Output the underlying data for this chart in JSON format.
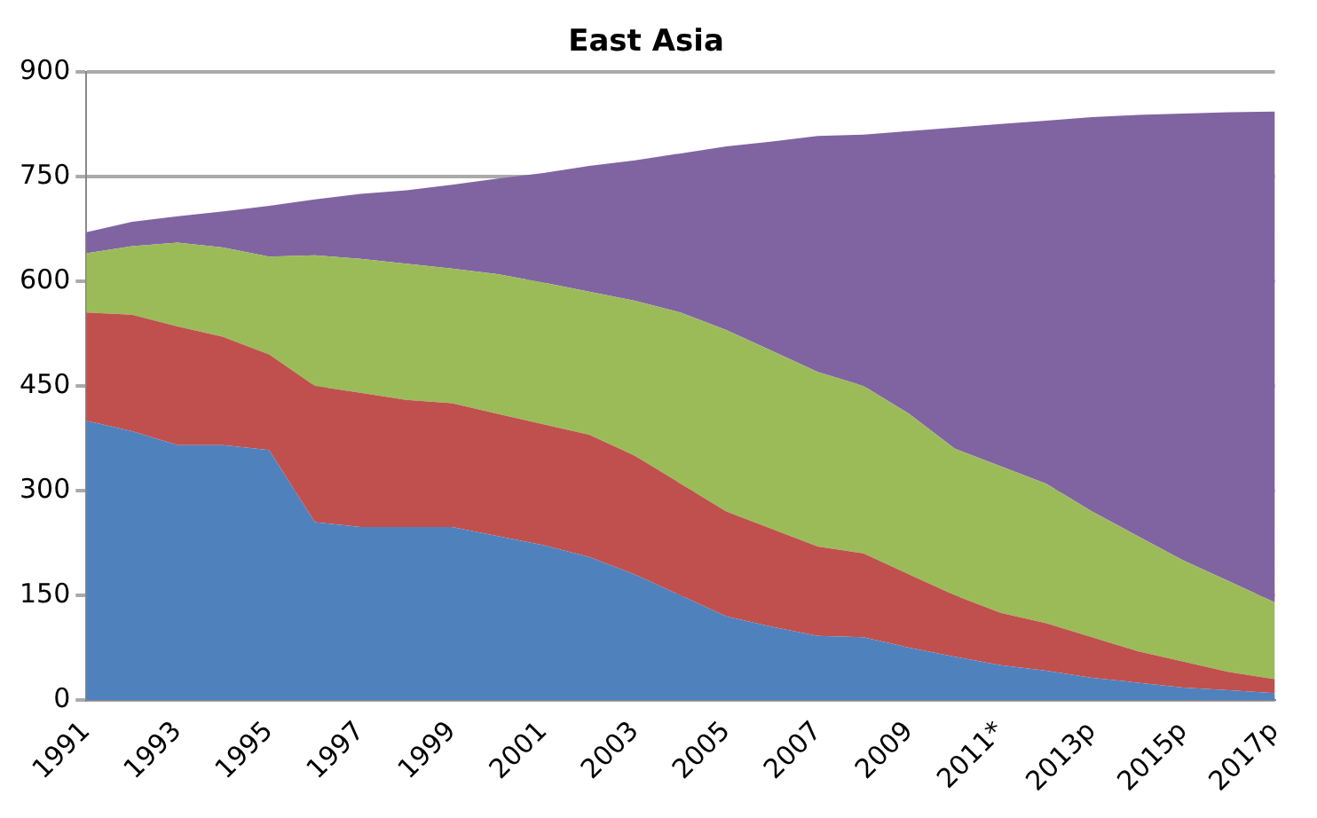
{
  "chart_data": {
    "type": "area",
    "title": "East Asia",
    "stacked": true,
    "grid": "y",
    "legend": false,
    "categories": [
      "1991",
      null,
      "1993",
      null,
      "1995",
      null,
      "1997",
      null,
      "1999",
      null,
      "2001",
      null,
      "2003",
      null,
      "2005",
      null,
      "2007",
      null,
      "2009",
      null,
      "2011*",
      null,
      "2013p",
      null,
      "2015p",
      null,
      "2017p"
    ],
    "ylim": [
      0,
      900
    ],
    "yticks": [
      0,
      150,
      300,
      450,
      600,
      750,
      900
    ],
    "series": [
      {
        "color": "#4f81bd",
        "values": [
          400,
          385,
          365,
          365,
          358,
          255,
          248,
          248,
          248,
          235,
          222,
          205,
          180,
          150,
          120,
          105,
          92,
          90,
          75,
          62,
          50,
          42,
          32,
          25,
          18,
          14,
          10
        ]
      },
      {
        "color": "#c0504d",
        "values": [
          155,
          167,
          170,
          155,
          137,
          195,
          192,
          182,
          177,
          175,
          173,
          175,
          170,
          160,
          150,
          140,
          128,
          120,
          105,
          88,
          75,
          68,
          58,
          45,
          37,
          26,
          20
        ]
      },
      {
        "color": "#9bbb59",
        "values": [
          85,
          98,
          120,
          128,
          140,
          187,
          192,
          195,
          193,
          200,
          203,
          205,
          222,
          245,
          260,
          255,
          250,
          240,
          230,
          210,
          210,
          200,
          180,
          165,
          145,
          130,
          110
        ]
      },
      {
        "color": "#8064a2",
        "values": [
          30,
          35,
          38,
          52,
          73,
          80,
          93,
          105,
          120,
          137,
          157,
          180,
          201,
          228,
          263,
          300,
          338,
          360,
          405,
          460,
          490,
          520,
          565,
          603,
          640,
          672,
          703
        ]
      }
    ]
  }
}
